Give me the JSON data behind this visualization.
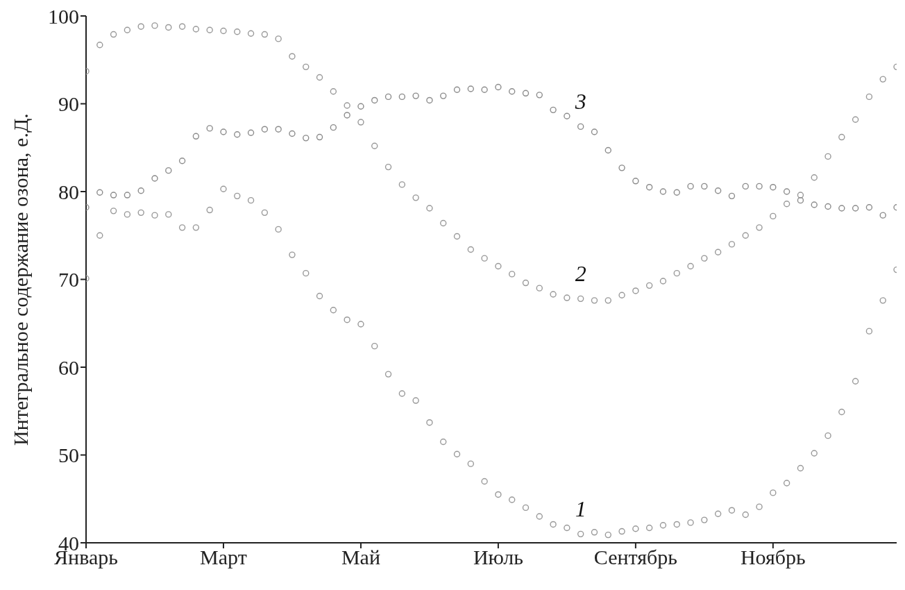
{
  "chart_data": {
    "type": "scatter",
    "ylabel": "Интегральное содержание озона, е.Д.",
    "categories": [
      "Январь",
      null,
      null,
      null,
      null,
      null,
      null,
      null,
      null,
      null,
      "Март",
      null,
      null,
      null,
      null,
      null,
      null,
      null,
      null,
      null,
      "Май",
      null,
      null,
      null,
      null,
      null,
      null,
      null,
      null,
      null,
      "Июль",
      null,
      null,
      null,
      null,
      null,
      null,
      null,
      null,
      null,
      "Сентябрь",
      null,
      null,
      null,
      null,
      null,
      null,
      null,
      null,
      null,
      "Ноябрь",
      null,
      null,
      null,
      null,
      null,
      null,
      null,
      null,
      null
    ],
    "ylim": [
      40,
      100
    ],
    "yticks": [
      40,
      50,
      60,
      70,
      80,
      90,
      100
    ],
    "grid": false,
    "legend": false,
    "marker": "circle",
    "series": [
      {
        "name": "1",
        "color": "#999999",
        "values": [
          70.1,
          75.0,
          77.8,
          77.4,
          77.6,
          77.3,
          77.4,
          75.9,
          75.9,
          77.9,
          80.3,
          79.5,
          79.0,
          77.6,
          75.7,
          72.8,
          70.7,
          68.1,
          66.5,
          65.4,
          64.9,
          62.4,
          59.2,
          57.0,
          56.2,
          53.7,
          51.5,
          50.1,
          49.0,
          47.0,
          45.5,
          44.9,
          44.0,
          43.0,
          42.1,
          41.7,
          41.0,
          41.2,
          40.9,
          41.3,
          41.6,
          41.7,
          42.0,
          42.1,
          42.3,
          42.6,
          43.3,
          43.7,
          43.2,
          44.1,
          45.7,
          46.8,
          48.5,
          50.2,
          52.2,
          54.9,
          58.4,
          64.1,
          67.6,
          71.1
        ]
      },
      {
        "name": "2",
        "color": "#999999",
        "values": [
          93.7,
          96.7,
          97.9,
          98.4,
          98.8,
          98.9,
          98.7,
          98.8,
          98.5,
          98.4,
          98.3,
          98.2,
          98.0,
          97.9,
          97.4,
          95.4,
          94.2,
          93.0,
          91.4,
          89.8,
          87.9,
          85.2,
          82.8,
          80.8,
          79.3,
          78.1,
          76.4,
          74.9,
          73.4,
          72.4,
          71.5,
          70.6,
          69.6,
          69.0,
          68.3,
          67.9,
          67.8,
          67.6,
          67.6,
          68.2,
          68.7,
          69.3,
          69.8,
          70.7,
          71.5,
          72.4,
          73.1,
          74.0,
          75.0,
          75.9,
          77.2,
          78.6,
          79.6,
          81.6,
          84.0,
          86.2,
          88.2,
          90.8,
          92.8,
          94.2
        ]
      },
      {
        "name": "3",
        "color": "#8c8c8c",
        "values": [
          78.2,
          79.9,
          79.6,
          79.6,
          80.1,
          81.5,
          82.4,
          83.5,
          86.3,
          87.2,
          86.8,
          86.5,
          86.7,
          87.1,
          87.1,
          86.6,
          86.1,
          86.2,
          87.3,
          88.7,
          89.7,
          90.4,
          90.8,
          90.8,
          90.9,
          90.4,
          90.9,
          91.6,
          91.7,
          91.6,
          91.9,
          91.4,
          91.2,
          91.0,
          89.3,
          88.6,
          87.4,
          86.8,
          84.7,
          82.7,
          81.2,
          80.5,
          80.0,
          79.9,
          80.6,
          80.6,
          80.1,
          79.5,
          80.6,
          80.6,
          80.5,
          80.0,
          79.0,
          78.5,
          78.3,
          78.1,
          78.1,
          78.2,
          77.3,
          78.2
        ]
      }
    ]
  }
}
